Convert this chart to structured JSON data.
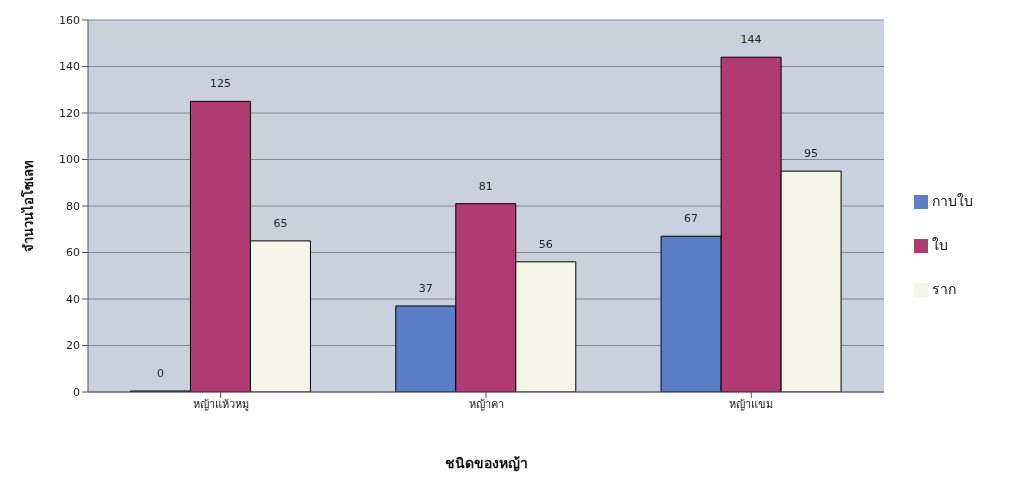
{
  "chart_data": {
    "type": "bar",
    "xlabel": "ชนิดของหญ้า",
    "ylabel": "จำนวนไอโซเลท",
    "categories": [
      "หญ้าแห้วหมู",
      "หญ้าคา",
      "หญ้าแขม"
    ],
    "series": [
      {
        "name": "กาบใบ",
        "color": "#5b7fc7",
        "values": [
          0,
          37,
          67
        ]
      },
      {
        "name": "ใบ",
        "color": "#b03a72",
        "values": [
          125,
          81,
          144
        ]
      },
      {
        "name": "ราก",
        "color": "#f6f6e8",
        "values": [
          65,
          56,
          95
        ]
      }
    ],
    "ylim": [
      0,
      160
    ],
    "yticks": [
      0,
      20,
      40,
      60,
      80,
      100,
      120,
      140,
      160
    ],
    "grid": "y",
    "legend": "right",
    "data_labels": true
  }
}
